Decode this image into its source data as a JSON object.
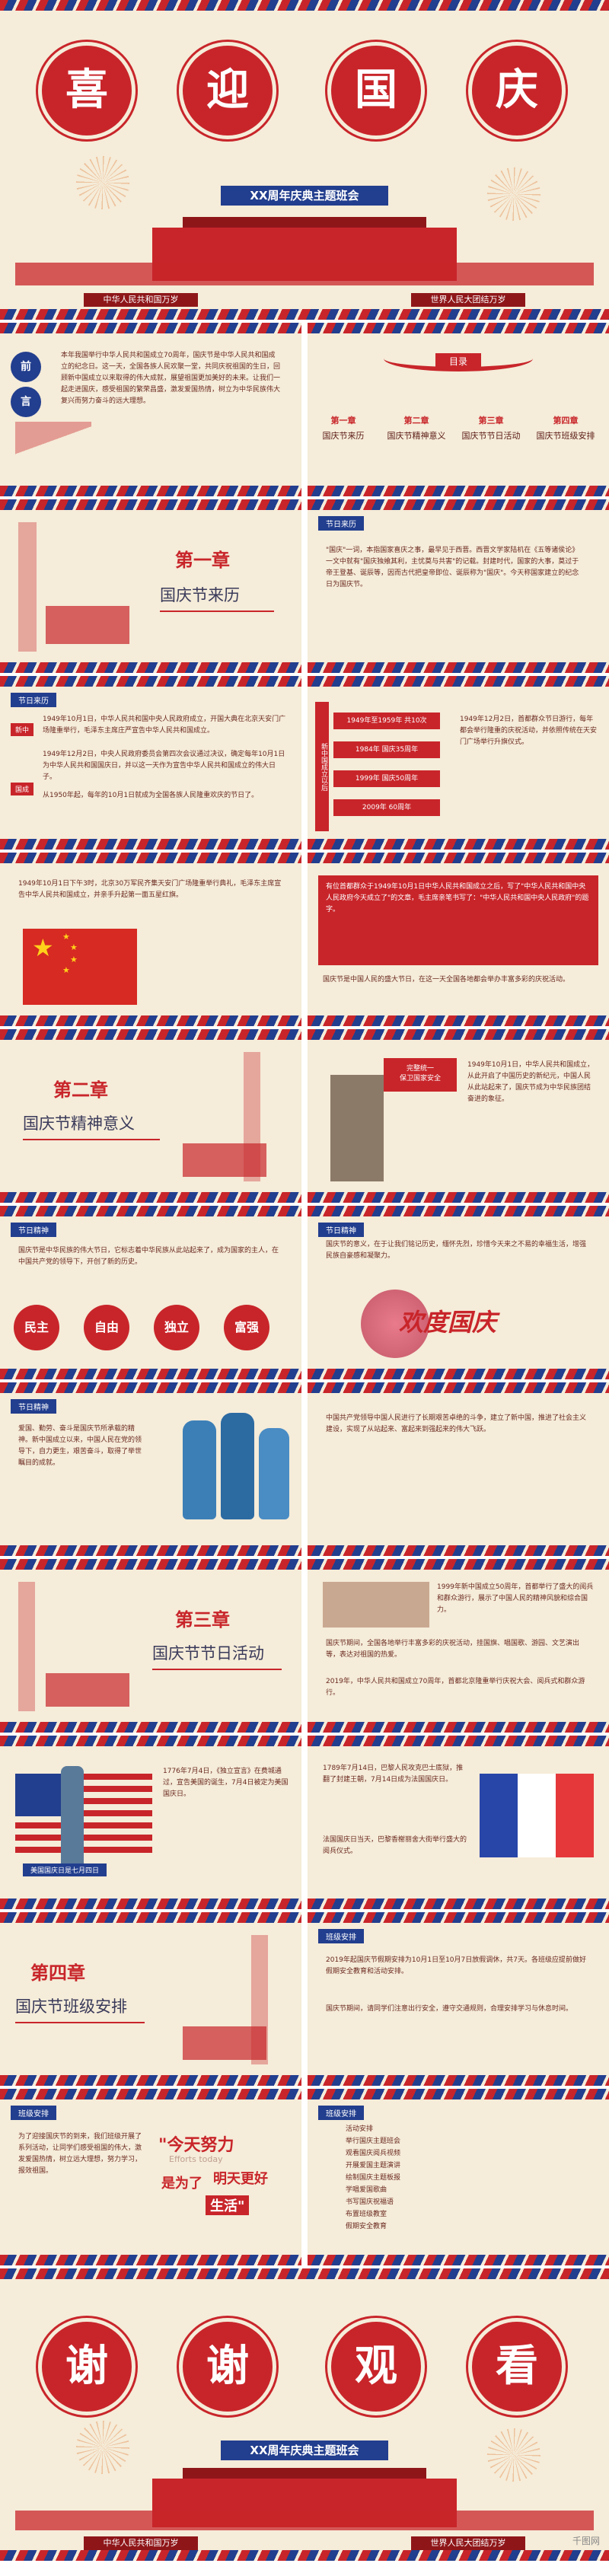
{
  "cover": {
    "chars": [
      "喜",
      "迎",
      "国",
      "庆"
    ],
    "banner": "XX周年庆典主题班会",
    "slogan_left": "中华人民共和国万岁",
    "slogan_right": "世界人民大团结万岁"
  },
  "preface": {
    "chars": [
      "前",
      "言"
    ],
    "text": "本年我国举行中华人民共和国成立70周年，国庆节是中华人民共和国成立的纪念日。这一天，全国各族人民欢聚一堂，共同庆祝祖国的生日，回顾新中国成立以来取得的伟大成就，展望祖国更加美好的未来。让我们一起走进国庆，感受祖国的繁荣昌盛，激发爱国热情，树立为中华民族伟大复兴而努力奋斗的远大理想。"
  },
  "toc": {
    "title": "目录",
    "items": [
      {
        "num": "第一章",
        "title": "国庆节来历"
      },
      {
        "num": "第二章",
        "title": "国庆节精神意义"
      },
      {
        "num": "第三章",
        "title": "国庆节节日活动"
      },
      {
        "num": "第四章",
        "title": "国庆节班级安排"
      }
    ]
  },
  "ch1": {
    "num": "第一章",
    "title": "国庆节来历"
  },
  "origin": {
    "tag": "节日来历",
    "text": "\"国庆\"一词，本指国家喜庆之事，最早见于西晋。西晋文学家陆机在《五等诸侯论》一文中就有\"国庆独飨其利，主忧莫与共害\"的记载。封建时代，国家的大事，莫过于帝王登基、诞辰等，因而古代把皇帝即位、诞辰称为\"国庆\"。今天称国家建立的纪念日为国庆节。"
  },
  "history": {
    "tag": "节日来历",
    "label1": "新中",
    "label2": "国成",
    "text1": "1949年10月1日，中华人民共和国中央人民政府成立，开国大典在北京天安门广场隆重举行，毛泽东主席庄严宣告中华人民共和国成立。",
    "text2": "1949年12月2日，中央人民政府委员会第四次会议通过决议，确定每年10月1日为中华人民共和国国庆日，并以这一天作为宣告中华人民共和国成立的伟大日子。",
    "text3": "从1950年起，每年的10月1日就成为全国各族人民隆重欢庆的节日了。",
    "side_label": "新中国成立以后",
    "years": [
      "1949年至1959年 共10次",
      "1984年 国庆35周年",
      "1999年 国庆50周年",
      "2009年 60周年"
    ],
    "right_text": "1949年12月2日，首都群众节日游行，每年都会举行隆重的庆祝活动，并依照传统在天安门广场举行升旗仪式。"
  },
  "flag": {
    "text": "1949年10月1日下午3时，北京30万军民齐集天安门广场隆重举行典礼，毛泽东主席宣告中华人民共和国成立，并亲手升起第一面五星红旗。",
    "quote": "有位首都群众于1949年10月1日中华人民共和国成立之后，写了\"中华人民共和国中央人民政府今天成立了\"的文章，毛主席亲笔书写了：\"中华人民共和国中央人民政府\"的题字。",
    "bottom": "国庆节是中国人民的盛大节日，在这一天全国各地都会举办丰富多彩的庆祝活动。"
  },
  "ch2": {
    "num": "第二章",
    "title": "国庆节精神意义"
  },
  "ch2_poster": {
    "line1": "完整统一",
    "line2": "保卫国家安全"
  },
  "ch2_text": "1949年10月1日，中华人民共和国成立，从此开启了中国历史的新纪元，中国人民从此站起来了，国庆节成为中华民族团结奋进的象征。",
  "spirit": {
    "tag": "节日精神",
    "text": "国庆节是中华民族的伟大节日，它标志着中华民族从此站起来了，成为国家的主人，在中国共产党的领导下，开创了新的历史。",
    "words": [
      "民主",
      "自由",
      "独立",
      "富强"
    ],
    "right_tag": "节日精神",
    "right_text": "国庆节的意义，在于让我们铭记历史，缅怀先烈，珍惜今天来之不易的幸福生活，增强民族自豪感和凝聚力。",
    "calligraphy": "欢度国庆"
  },
  "spirit2": {
    "tag": "节日精神",
    "text_left": "爱国、勤劳、奋斗是国庆节所承载的精神。新中国成立以来，中国人民在党的领导下，自力更生，艰苦奋斗，取得了举世瞩目的成就。",
    "text_right": "中国共产党领导中国人民进行了长期艰苦卓绝的斗争，建立了新中国，推进了社会主义建设，实现了从站起来、富起来到强起来的伟大飞跃。"
  },
  "ch3": {
    "num": "第三章",
    "title": "国庆节节日活动"
  },
  "activity": {
    "tag": "节日活动",
    "text": "1999年新中国成立50周年，首都举行了盛大的阅兵和群众游行，展示了中国人民的精神风貌和综合国力。",
    "text2": "国庆节期间，全国各地举行丰富多彩的庆祝活动，挂国旗、唱国歌、游园、文艺演出等，表达对祖国的热爱。",
    "text3": "2019年，中华人民共和国成立70周年，首都北京隆重举行庆祝大会、阅兵式和群众游行。"
  },
  "foreign": {
    "text_us": "1776年7月4日，《独立宣言》在费城通过，宣告美国的诞生，7月4日被定为美国国庆日。",
    "caption_us": "美国国庆日是七月四日",
    "text_fr": "1789年7月14日，巴黎人民攻克巴士底狱，推翻了封建王朝，7月14日成为法国国庆日。",
    "text_fr2": "法国国庆日当天，巴黎香榭丽舍大街举行盛大的阅兵仪式。"
  },
  "ch4": {
    "num": "第四章",
    "title": "国庆节班级安排"
  },
  "arrange": {
    "tag": "班级安排",
    "text": "2019年起国庆节假期安排为10月1日至10月7日放假调休，共7天。各班级应提前做好假期安全教育和活动安排。",
    "text2": "国庆节期间，请同学们注意出行安全，遵守交通规则，合理安排学习与休息时间。"
  },
  "effort": {
    "tag": "班级安排",
    "left_text": "为了迎接国庆节的到来，我们班级开展了系列活动，让同学们感受祖国的伟大，激发爱国热情，树立远大理想，努力学习，报效祖国。",
    "quote1": "\"今天努力",
    "quote_en": "Efforts today",
    "quote2": "是为了",
    "quote3": "明天更好",
    "quote4": "生活\"",
    "right_tag": "班级安排",
    "list": [
      "活动安排",
      "举行国庆主题班会",
      "观看国庆阅兵视频",
      "开展爱国主题演讲",
      "绘制国庆主题板报",
      "学唱爱国歌曲",
      "书写国庆祝福语",
      "布置班级教室",
      "假期安全教育"
    ]
  },
  "ending": {
    "chars": [
      "谢",
      "谢",
      "观",
      "看"
    ],
    "banner": "XX周年庆典主题班会",
    "slogan_left": "中华人民共和国万岁",
    "slogan_right": "世界人民大团结万岁",
    "watermark": "千图网"
  }
}
